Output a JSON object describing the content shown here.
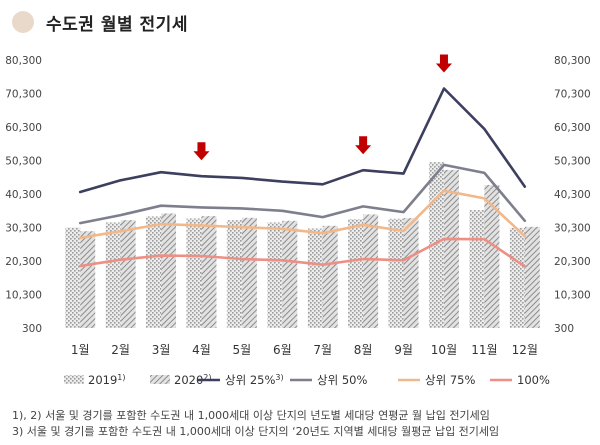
{
  "title": "수도권 월별 전기세",
  "chart_data": {
    "type": "bar",
    "categories": [
      "1월",
      "2월",
      "3월",
      "4월",
      "5월",
      "6월",
      "7월",
      "8월",
      "9월",
      "10월",
      "11월",
      "12월"
    ],
    "y_ticks": [
      "300",
      "10,300",
      "20,300",
      "30,300",
      "40,300",
      "50,300",
      "60,300",
      "70,300",
      "80,300"
    ],
    "ylim": [
      300,
      80300
    ],
    "bars": [
      {
        "name": "2019",
        "note": "1)",
        "color": "#d9d9d9",
        "pattern": "dots",
        "values": [
          30300,
          31800,
          33600,
          33000,
          32500,
          31800,
          30000,
          32800,
          32900,
          49800,
          35500,
          30200
        ]
      },
      {
        "name": "2020",
        "note": "2)",
        "color": "#bfbfbf",
        "pattern": "hatch",
        "values": [
          29200,
          32500,
          34500,
          33700,
          33200,
          32300,
          30800,
          34200,
          33100,
          47500,
          43000,
          30500
        ]
      }
    ],
    "lines": [
      {
        "name": "상위 25%",
        "note": "3)",
        "color": "#3c3f5e",
        "values": [
          40900,
          44400,
          46800,
          45600,
          45100,
          44000,
          43200,
          47400,
          46400,
          71800,
          59700,
          42500
        ]
      },
      {
        "name": "상위 50%",
        "color": "#7d7f8c",
        "values": [
          31600,
          34000,
          36800,
          36300,
          36000,
          35300,
          33400,
          36600,
          34900,
          49000,
          46600,
          32300
        ]
      },
      {
        "name": "상위 75%",
        "color": "#f2b88a",
        "values": [
          27200,
          29200,
          31300,
          30900,
          30400,
          29900,
          28600,
          31100,
          29300,
          41300,
          39000,
          27700
        ]
      },
      {
        "name": "100%",
        "color": "#ee8f85",
        "values": [
          18800,
          20700,
          21900,
          21800,
          20900,
          20500,
          19200,
          20900,
          20500,
          26900,
          26800,
          18700
        ]
      }
    ],
    "markers": {
      "categories": [
        "4월",
        "8월",
        "10월"
      ],
      "color": "#c00000"
    },
    "grid": false,
    "legend": "bottom"
  },
  "footnotes": [
    "1), 2) 서울 및 경기를 포함한 수도권 내 1,000세대 이상 단지의 년도별 세대당 연평균 월 납입 전기세임",
    "3) 서울 및 경기를 포함한 수도권 내 1,000세대 이상 단지의 ‘20년도 지역별 세대당 월평균 납입 전기세임"
  ]
}
